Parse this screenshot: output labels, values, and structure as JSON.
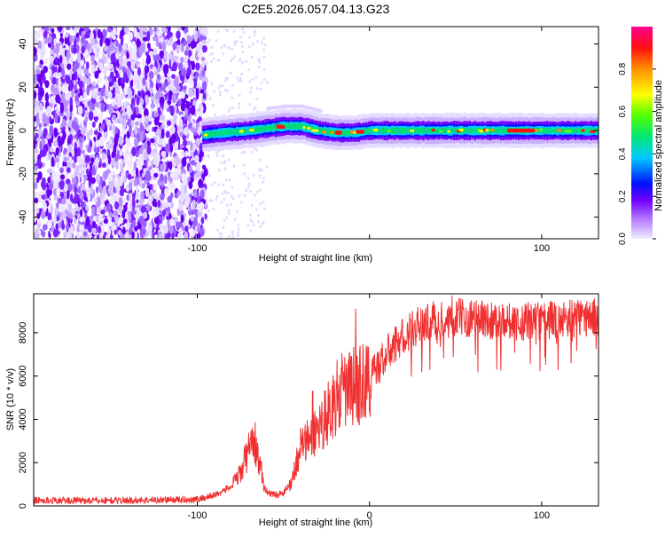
{
  "title": "C2E5.2026.057.04.13.G23",
  "chart_data": [
    {
      "type": "heatmap",
      "title": "C2E5.2026.057.04.13.G23",
      "xlabel": "Height of straight line (km)",
      "ylabel": "Frequency (Hz)",
      "xlim": [
        -195,
        133
      ],
      "ylim": [
        -50,
        48
      ],
      "x_ticks": [
        -100,
        0,
        100
      ],
      "x_tick_labels": [
        "-100",
        "",
        "100"
      ],
      "y_ticks": [
        -40,
        -20,
        0,
        20,
        40
      ],
      "y_tick_labels": [
        "-40",
        "-20",
        "0",
        "20",
        "40"
      ],
      "colorbar": {
        "label": "Normalized spectral amplitude",
        "range": [
          0,
          1
        ],
        "ticks": [
          0.0,
          0.2,
          0.4,
          0.6,
          0.8
        ],
        "tick_labels": [
          "0.0",
          "0.2",
          "0.4",
          "0.6",
          "0.8"
        ],
        "colormap": "rainbow (purple to red)",
        "colors": [
          "#dcdcf0",
          "#7b00ff",
          "#0010ff",
          "#00d0ff",
          "#00e070",
          "#60ff00",
          "#ffff00",
          "#ff9000",
          "#ff1010",
          "#ff00a0"
        ]
      },
      "noise_region_x": [
        -195,
        -95
      ],
      "signal_ridge": {
        "x": [
          -97,
          -85,
          -70,
          -60,
          -50,
          -40,
          -30,
          -20,
          -10,
          0,
          20,
          40,
          60,
          80,
          100,
          120,
          133
        ],
        "freq": [
          -2,
          -1,
          0,
          1,
          2,
          2,
          0,
          -1,
          -1,
          0,
          0,
          0,
          0,
          0,
          0,
          0,
          0
        ]
      }
    },
    {
      "type": "line",
      "title": "",
      "xlabel": "Height of straight line (km)",
      "ylabel": "SNR (10 * v/v)",
      "xlim": [
        -195,
        133
      ],
      "ylim": [
        0,
        9800
      ],
      "x_ticks": [
        -100,
        0,
        100
      ],
      "x_tick_labels": [
        "-100",
        "0",
        "100"
      ],
      "y_ticks": [
        0,
        2000,
        4000,
        6000,
        8000
      ],
      "y_tick_labels": [
        "0",
        "2000",
        "4000",
        "6000",
        "8000"
      ],
      "color": "#f03030",
      "grid": false,
      "series": [
        {
          "name": "SNR",
          "x": [
            -195,
            -150,
            -100,
            -90,
            -80,
            -75,
            -70,
            -68,
            -65,
            -62,
            -60,
            -55,
            -50,
            -45,
            -40,
            -35,
            -30,
            -25,
            -20,
            -15,
            -10,
            -5,
            0,
            10,
            20,
            30,
            40,
            50,
            60,
            70,
            80,
            90,
            100,
            110,
            120,
            133
          ],
          "values": [
            250,
            250,
            300,
            500,
            900,
            1500,
            2600,
            3400,
            2400,
            1200,
            700,
            500,
            600,
            1200,
            2800,
            3000,
            3600,
            4200,
            4900,
            5300,
            5500,
            5600,
            5900,
            7000,
            7900,
            8400,
            8600,
            8700,
            8700,
            8600,
            8600,
            8500,
            8600,
            8600,
            8700,
            8700
          ],
          "spikes": [
            {
              "x": -68,
              "value": 3600
            },
            {
              "x": -33,
              "value": 5300
            },
            {
              "x": -8,
              "value": 9100
            },
            {
              "x": 48,
              "value": 9700
            }
          ]
        }
      ]
    }
  ]
}
